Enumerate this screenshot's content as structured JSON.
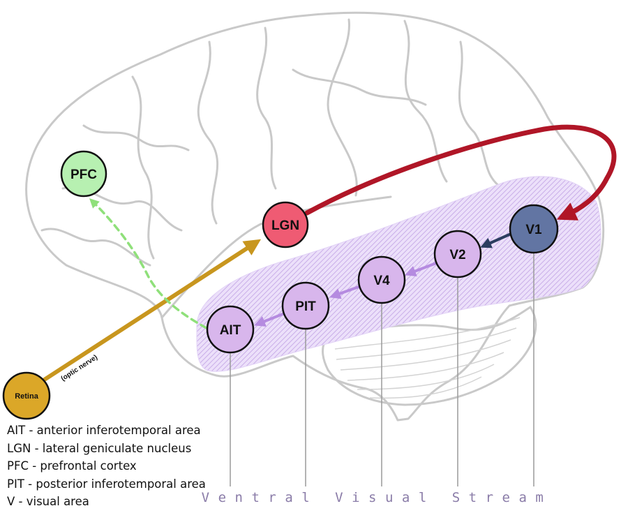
{
  "nodes": {
    "pfc": {
      "label": "PFC",
      "color": "#b7f0b1"
    },
    "lgn": {
      "label": "LGN",
      "color": "#ef5b73"
    },
    "v1": {
      "label": "V1",
      "color": "#6275a3"
    },
    "v2": {
      "label": "V2",
      "color": "#d8b6ec"
    },
    "v4": {
      "label": "V4",
      "color": "#d8b6ec"
    },
    "pit": {
      "label": "PIT",
      "color": "#d8b6ec"
    },
    "ait": {
      "label": "AIT",
      "color": "#d8b6ec"
    },
    "retina": {
      "label": "Retina",
      "color": "#dba728"
    }
  },
  "edges": {
    "optic_nerve_label": "(optic nerve)"
  },
  "stream_label": "Ventral Visual Stream",
  "legend": [
    "AIT - anterior inferotemporal area",
    "LGN -  lateral geniculate nucleus",
    "PFC - prefrontal cortex",
    "PIT - posterior inferotemporal area",
    "V - visual area"
  ],
  "colors": {
    "retina_to_lgn": "#c8961e",
    "lgn_to_v1": "#b01627",
    "v1_to_v2": "#2c3e60",
    "ventral_forward": "#b58be0",
    "ait_to_pfc": "#8fe07a",
    "stream_region": "#d9c6f2"
  }
}
